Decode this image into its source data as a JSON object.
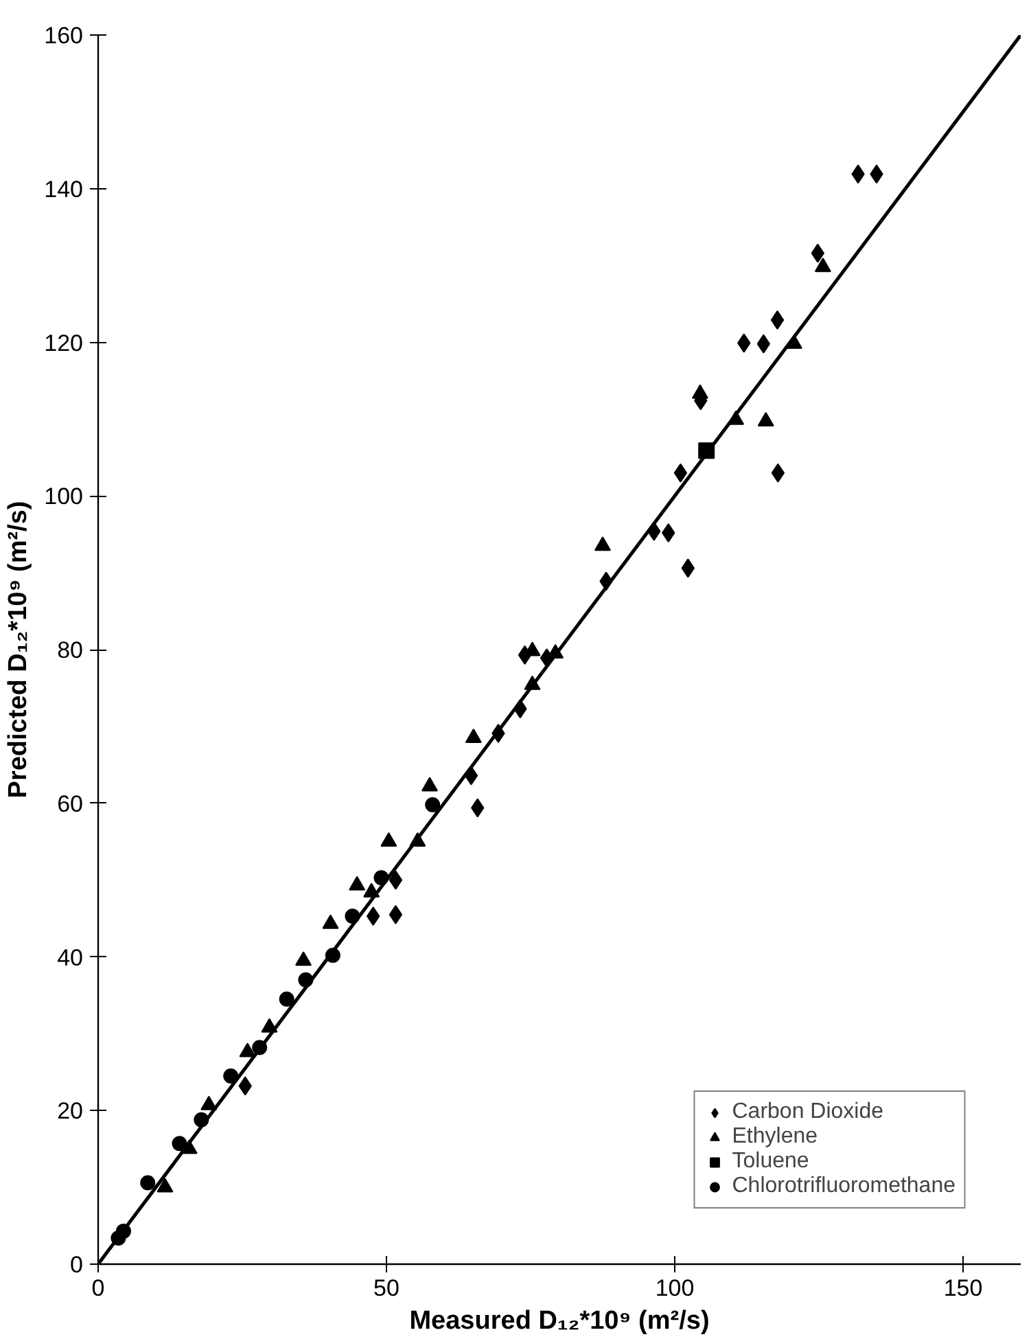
{
  "chart_data": {
    "type": "scatter",
    "xlabel": "Measured D₁₂*10⁹ (m²/s)",
    "ylabel": "Predicted D₁₂*10⁹ (m²/s)",
    "xlim": [
      0,
      160
    ],
    "ylim": [
      0,
      160
    ],
    "xticks": [
      0,
      50,
      100,
      150
    ],
    "yticks": [
      0,
      20,
      40,
      60,
      80,
      100,
      120,
      140,
      160
    ],
    "grid": false,
    "legend": "bottom right",
    "series": [
      {
        "name": "Carbon Dioxide",
        "color": "#000000",
        "marker": "diamond",
        "x": [
          131.8,
          135.0,
          124.8,
          117.8,
          112.0,
          115.4,
          104.5,
          117.9,
          101.0,
          96.4,
          98.9,
          102.3,
          88.1,
          74.0,
          77.8,
          73.2,
          69.4,
          64.7,
          65.8,
          51.6,
          47.7,
          51.6,
          25.5
        ],
        "values": [
          141.9,
          141.9,
          131.6,
          122.9,
          119.9,
          119.8,
          112.4,
          103.0,
          103.0,
          95.4,
          95.2,
          90.6,
          88.9,
          79.3,
          78.9,
          72.3,
          69.1,
          63.6,
          59.4,
          45.5,
          45.3,
          50.0,
          23.2
        ]
      },
      {
        "name": "Ethylene",
        "color": "#000000",
        "marker": "triangle",
        "x": [
          125.7,
          120.7,
          104.4,
          110.6,
          115.8,
          87.5,
          75.3,
          79.3,
          75.3,
          65.1,
          57.5,
          55.4,
          50.4,
          44.9,
          47.4,
          40.3,
          35.6,
          29.7,
          25.9,
          19.2,
          15.8,
          11.6
        ],
        "values": [
          129.8,
          119.8,
          113.3,
          109.9,
          109.7,
          93.5,
          79.8,
          79.5,
          75.4,
          68.5,
          62.2,
          55.0,
          55.0,
          49.3,
          48.4,
          44.3,
          39.5,
          30.8,
          27.6,
          20.7,
          15.0,
          10.0
        ]
      },
      {
        "name": "Toluene",
        "color": "#000000",
        "marker": "square",
        "x": [
          105.5
        ],
        "values": [
          105.9
        ]
      },
      {
        "name": "Chlorotrifluoromethane",
        "color": "#000000",
        "marker": "circle",
        "x": [
          58.0,
          49.1,
          44.1,
          40.7,
          36.0,
          32.7,
          28.0,
          23.0,
          17.9,
          14.1,
          8.6,
          4.4,
          3.5
        ],
        "values": [
          59.8,
          50.3,
          45.3,
          40.2,
          37.0,
          34.5,
          28.2,
          24.5,
          18.8,
          15.7,
          10.6,
          4.3,
          3.4
        ]
      },
      {
        "type": "line",
        "color": "#000000",
        "line_style": "solid",
        "x": [
          0,
          160
        ],
        "values": [
          0,
          160
        ]
      }
    ]
  }
}
